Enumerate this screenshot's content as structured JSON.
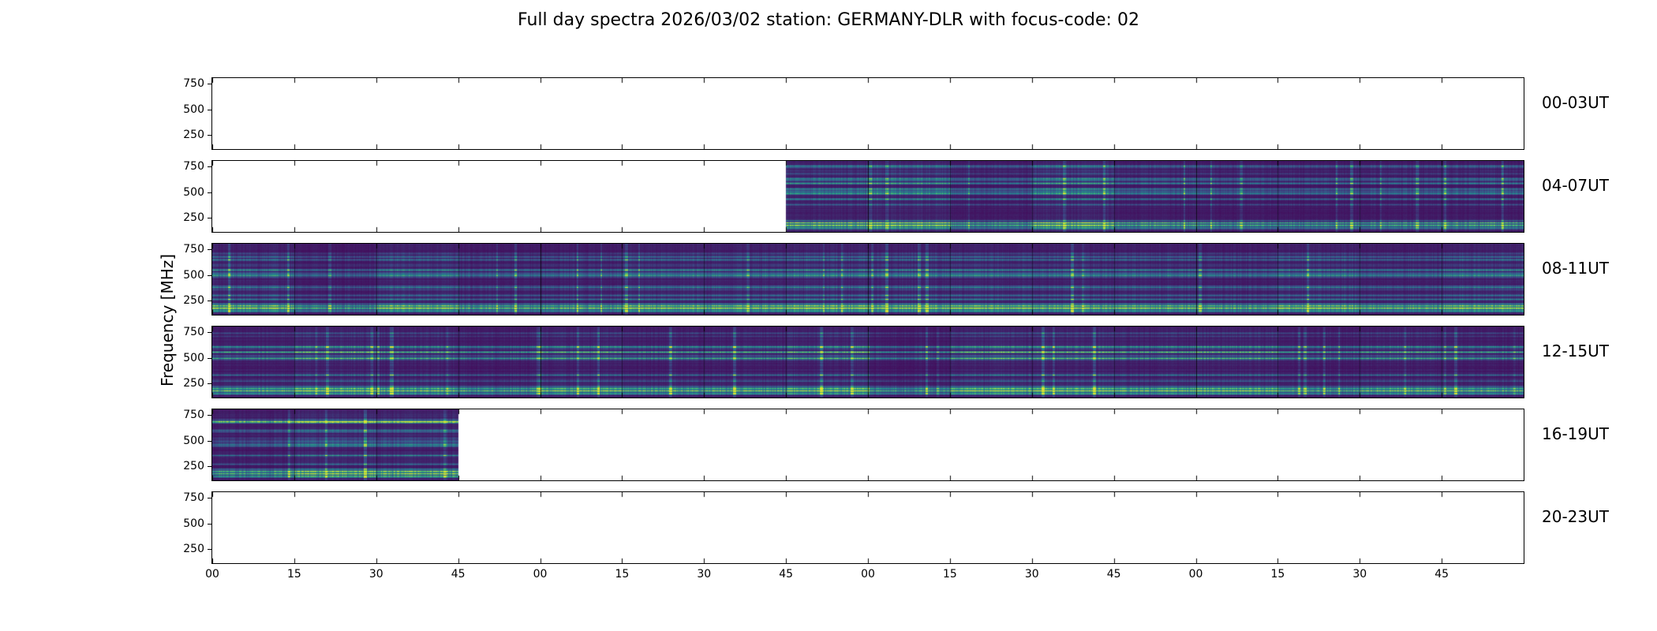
{
  "title": "Full day spectra 2026/03/02 station: GERMANY-DLR with focus-code: 02",
  "y_axis_label": "Frequency [MHz]",
  "chart_data": {
    "type": "heatmap",
    "date": "2026/03/02",
    "station": "GERMANY-DLR",
    "focus_code": "02",
    "colormap": "viridis",
    "segments_per_row": 16,
    "x_tick_labels": [
      "00",
      "15",
      "30",
      "45",
      "00",
      "15",
      "30",
      "45",
      "00",
      "15",
      "30",
      "45",
      "00",
      "15",
      "30",
      "45"
    ],
    "y_tick_values": [
      750,
      500,
      250
    ],
    "y_axis_range_mhz": [
      110,
      806
    ],
    "rows": [
      {
        "time_label": "00-03UT",
        "data_intervals": [],
        "data_time_range_ut": null
      },
      {
        "time_label": "04-07UT",
        "data_intervals": [
          [
            0.4375,
            1.0
          ]
        ],
        "data_time_range_ut": "05:45-08:00"
      },
      {
        "time_label": "08-11UT",
        "data_intervals": [
          [
            0.0,
            1.0
          ]
        ],
        "data_time_range_ut": "08:00-12:00"
      },
      {
        "time_label": "12-15UT",
        "data_intervals": [
          [
            0.0,
            1.0
          ]
        ],
        "data_time_range_ut": "12:00-16:00"
      },
      {
        "time_label": "16-19UT",
        "data_intervals": [
          [
            0.0,
            0.1875
          ]
        ],
        "data_time_range_ut": "16:00-16:45"
      },
      {
        "time_label": "20-23UT",
        "data_intervals": [],
        "data_time_range_ut": null
      }
    ],
    "colors": {
      "spectrogram_base": "#440154",
      "spectrogram_bright_band": "#35b779",
      "panel_border": "#000000",
      "background": "#ffffff",
      "text": "#000000"
    }
  }
}
